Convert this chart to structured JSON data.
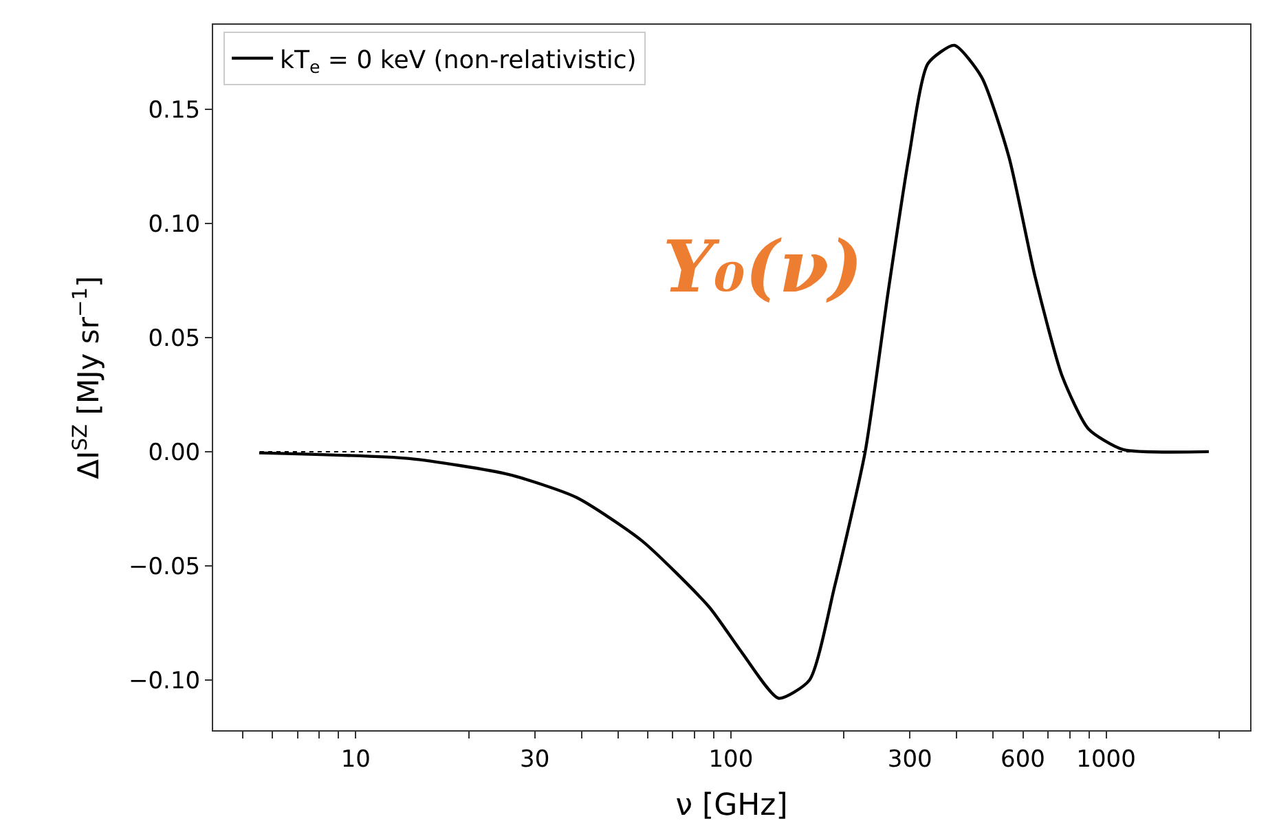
{
  "chart_data": {
    "type": "line",
    "xlabel": "ν [GHz]",
    "ylabel": "ΔI$^{SZ}$ [MJy sr$^{−1}$]",
    "annotations": [
      "Y₀(ν)"
    ],
    "x": [
      5.53,
      13.9,
      25.6,
      38.7,
      57.9,
      87.5,
      107,
      134,
      162,
      189,
      228,
      263,
      298,
      335,
      394,
      466,
      551,
      646,
      764,
      897,
      1107,
      1878
    ],
    "series": [
      {
        "name": "kT$_{e}$ = 0 keV (non-relativistic)",
        "color": "#000000",
        "values": [
          -0.0005,
          -0.003,
          -0.01,
          -0.02,
          -0.039,
          -0.068,
          -0.088,
          -0.108,
          -0.1,
          -0.059,
          0.0,
          0.071,
          0.129,
          0.17,
          0.178,
          0.164,
          0.129,
          0.077,
          0.033,
          0.01,
          0.001,
          0.0
        ]
      }
    ],
    "log": "x",
    "xlim": [
      4.17,
      2420
    ],
    "xticks": [
      {
        "value": 5,
        "label": null
      },
      {
        "value": 6,
        "label": null
      },
      {
        "value": 7,
        "label": null
      },
      {
        "value": 8,
        "label": null
      },
      {
        "value": 9,
        "label": null
      },
      10,
      {
        "value": 20,
        "label": null
      },
      30,
      {
        "value": 40,
        "label": null
      },
      {
        "value": 50,
        "label": null
      },
      {
        "value": 60,
        "label": null
      },
      {
        "value": 70,
        "label": null
      },
      {
        "value": 80,
        "label": null
      },
      {
        "value": 90,
        "label": null
      },
      100,
      {
        "value": 200,
        "label": null
      },
      300,
      {
        "value": 400,
        "label": null
      },
      {
        "value": 500,
        "label": null
      },
      600,
      {
        "value": 700,
        "label": null
      },
      {
        "value": 800,
        "label": null
      },
      {
        "value": 900,
        "label": null
      },
      1000,
      {
        "value": 2000,
        "label": null
      }
    ],
    "ylim": [
      -0.122,
      0.187
    ],
    "yticks": [
      {
        "value": -0.1,
        "label": "−0.10"
      },
      {
        "value": -0.05,
        "label": "−0.05"
      },
      {
        "value": 0,
        "label": "0.00"
      },
      {
        "value": 0.05,
        "label": "0.05"
      },
      {
        "value": 0.1,
        "label": "0.10"
      },
      {
        "value": 0.15,
        "label": "0.15"
      }
    ],
    "ref_lines": [
      {
        "axis": "y",
        "value": 0,
        "color": "#000000",
        "line_style": "dotted"
      }
    ],
    "grid": false,
    "legend": "top left",
    "marker": "none",
    "line_style": "solid"
  }
}
